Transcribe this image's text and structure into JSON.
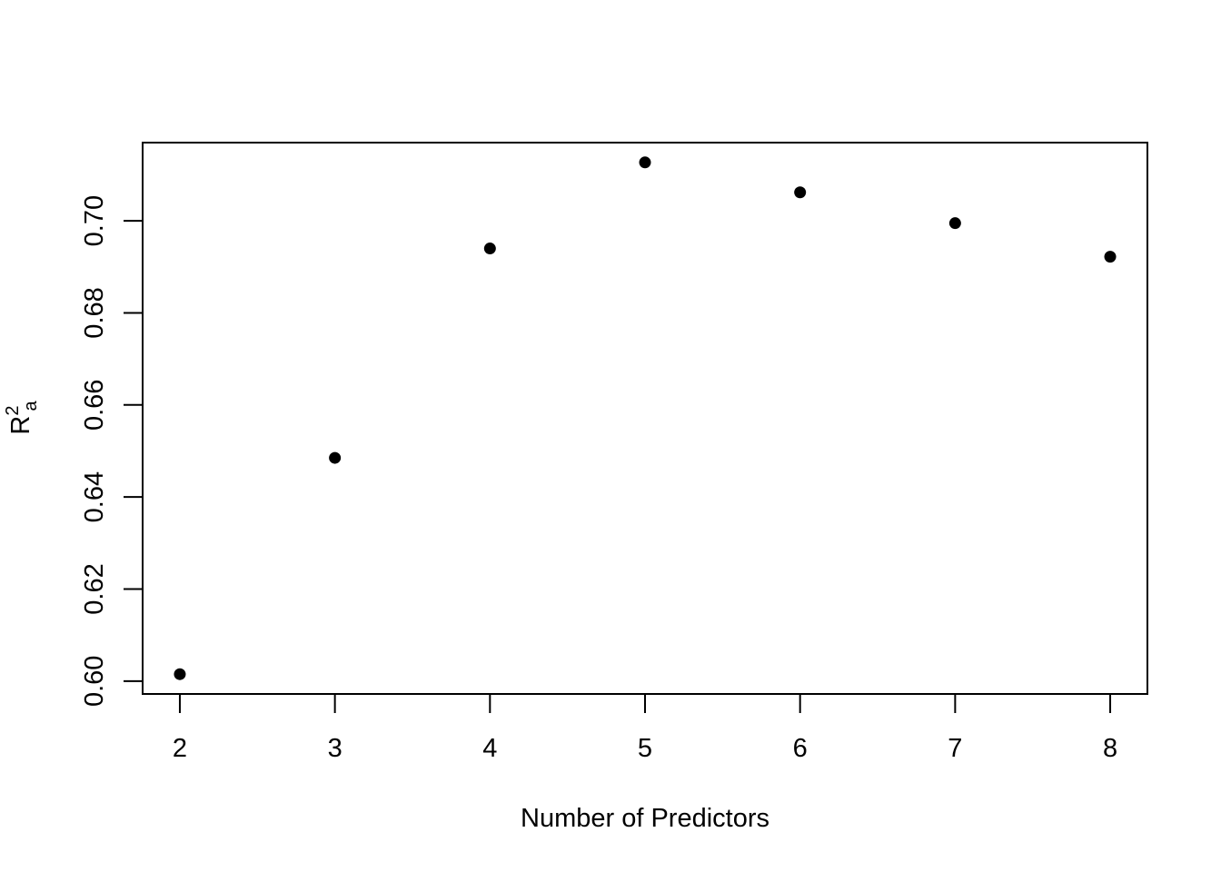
{
  "chart_data": {
    "type": "scatter",
    "title": "",
    "xlabel": "Number of Predictors",
    "ylabel": {
      "base": "R",
      "superscript": "2",
      "subscript": "a"
    },
    "x": [
      2,
      3,
      4,
      5,
      6,
      7,
      8
    ],
    "y": [
      0.6015,
      0.6485,
      0.694,
      0.7127,
      0.7062,
      0.6995,
      0.6922
    ],
    "xticks": [
      "2",
      "3",
      "4",
      "5",
      "6",
      "7",
      "8"
    ],
    "yticks": [
      "0.60",
      "0.62",
      "0.64",
      "0.66",
      "0.68",
      "0.70"
    ],
    "xlim": [
      1.76,
      8.24
    ],
    "ylim": [
      0.5972,
      0.717
    ],
    "grid": false,
    "marker_color": "#000000"
  }
}
